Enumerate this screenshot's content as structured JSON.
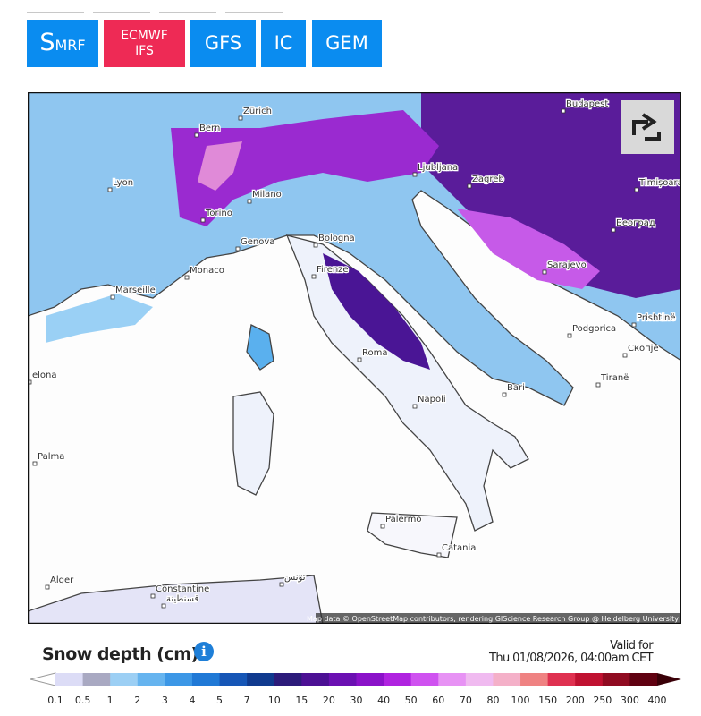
{
  "model_buttons": [
    {
      "label": "SMRF",
      "color": "#0a8cf0"
    },
    {
      "label": [
        "ECMWF",
        "IFS"
      ],
      "color": "#ee2a55"
    },
    {
      "label": "GFS",
      "color": "#0a8cf0"
    },
    {
      "label": "IC",
      "color": "#0a8cf0"
    },
    {
      "label": "GEM",
      "color": "#0a8cf0"
    }
  ],
  "map": {
    "labels": [
      "Zürich",
      "Bern",
      "Lyon",
      "Milano",
      "Torino",
      "Genova",
      "Monaco",
      "Marseille",
      "Bologna",
      "Firenze",
      "Roma",
      "Napoli",
      "Bari",
      "Ljubljana",
      "Zagreb",
      "Budapest",
      "Timișoara",
      "Београд",
      "Sarajevo",
      "Podgorica",
      "Prishtinë",
      "Tiranë",
      "Скопје",
      "Palma",
      "elona",
      "Alger",
      "Constantine",
      "قسنطينة",
      "تونس",
      "Palermo",
      "Catania"
    ],
    "attribution": "Map data © OpenStreetMap contributors, rendering GIScience Research Group @ Heidelberg University"
  },
  "legend": {
    "title": "Snow depth (cm)",
    "valid_label": "Valid for",
    "valid_time": "Thu 01/08/2026, 04:00am CET",
    "ticks": [
      "0.1",
      "0.5",
      "1",
      "2",
      "3",
      "4",
      "5",
      "7",
      "10",
      "15",
      "20",
      "30",
      "40",
      "50",
      "60",
      "70",
      "80",
      "100",
      "150",
      "200",
      "250",
      "300",
      "400"
    ],
    "colors": [
      "#dcdcf6",
      "#a9a9c2",
      "#9ccff4",
      "#66b4ef",
      "#3c97e6",
      "#2079d6",
      "#1656b6",
      "#103a8e",
      "#2c1b7a",
      "#4c1094",
      "#6b10b2",
      "#8b12c9",
      "#b023e0",
      "#cf52f0",
      "#e792f4",
      "#f0baf0",
      "#f4b0c8",
      "#ef8282",
      "#df3150",
      "#c01131",
      "#900b21",
      "#600111"
    ]
  }
}
